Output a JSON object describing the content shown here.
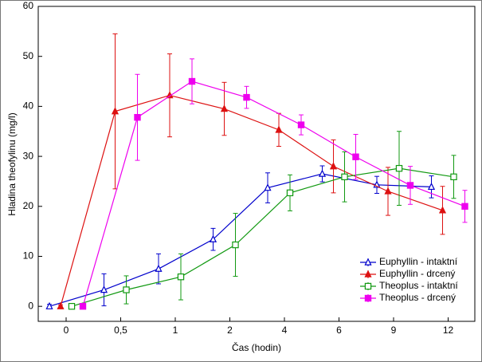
{
  "chart_data": {
    "type": "line",
    "x_label": "Čas (hodin)",
    "y_label": "Hladina theofylinu (mg/l)",
    "categories": [
      "0",
      "0,5",
      "1",
      "2",
      "4",
      "6",
      "9",
      "12"
    ],
    "ylim": [
      -3,
      60
    ],
    "yticks": [
      0,
      10,
      20,
      30,
      40,
      50,
      60
    ],
    "legend": "lower-right",
    "series": [
      {
        "name": "Euphyllin - intaktní",
        "color": "#0000cc",
        "marker": "triangle-open",
        "values": [
          0,
          3.3,
          7.5,
          13.4,
          23.7,
          26.5,
          24.3,
          23.9
        ],
        "errors": [
          0.4,
          3.2,
          3,
          2.2,
          3,
          1.6,
          1.7,
          2.2
        ]
      },
      {
        "name": "Euphyllin - drcený",
        "color": "#dd1111",
        "marker": "triangle-filled",
        "values": [
          0,
          39,
          42.2,
          39.5,
          35.3,
          28,
          23,
          19.2
        ],
        "errors": [
          0.3,
          15.5,
          8.3,
          5.3,
          3.3,
          5.3,
          4.8,
          4.8
        ]
      },
      {
        "name": "Theoplus - intaktní",
        "color": "#119911",
        "marker": "square-open",
        "values": [
          0,
          3.3,
          5.9,
          12.3,
          22.7,
          25.9,
          27.6,
          25.9
        ],
        "errors": [
          0.3,
          2.8,
          4.6,
          6.3,
          3.6,
          5,
          7.4,
          4.3
        ]
      },
      {
        "name": "Theoplus - drcený",
        "color": "#ee00ee",
        "marker": "square-filled",
        "values": [
          0,
          37.8,
          45,
          41.8,
          36.3,
          29.9,
          24.2,
          20
        ],
        "errors": [
          0.3,
          8.6,
          4.5,
          2.2,
          2,
          4.5,
          3.8,
          3.2
        ]
      }
    ]
  }
}
